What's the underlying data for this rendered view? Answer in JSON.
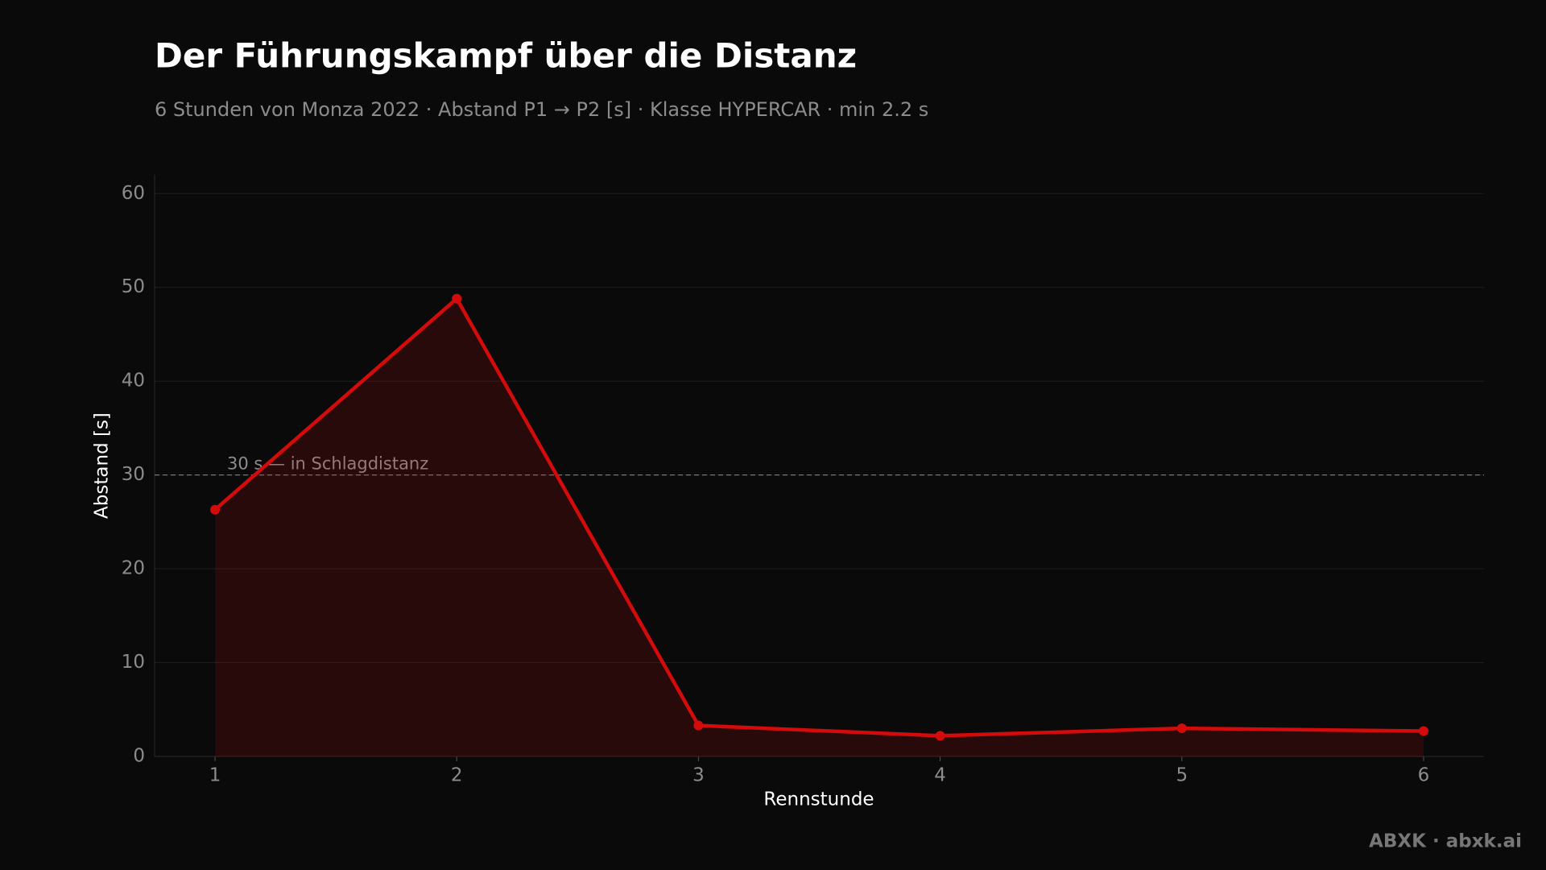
{
  "chart_data": {
    "type": "line",
    "title": "Der Führungskampf über die Distanz",
    "subtitle": "6 Stunden von Monza 2022 · Abstand P1 → P2 [s] · Klasse HYPERCAR · min 2.2 s",
    "x_label": "Rennstunde",
    "y_label": "Abstand [s]",
    "x": [
      1,
      2,
      3,
      4,
      5,
      6
    ],
    "series": [
      {
        "name": "Abstand P1 → P2",
        "color": "#d40b0b",
        "values": [
          26.3,
          48.8,
          3.3,
          2.2,
          3.0,
          2.7
        ]
      }
    ],
    "xlim": [
      0.75,
      6.25
    ],
    "xticks": [
      1,
      2,
      3,
      4,
      5,
      6
    ],
    "ylim": [
      0,
      62
    ],
    "yticks": [
      0,
      10,
      20,
      30,
      40,
      50,
      60
    ],
    "grid": true,
    "reference_line": {
      "value": 30,
      "label": "30 s — in Schlagdistanz"
    },
    "footer": "ABXK · abxk.ai"
  }
}
